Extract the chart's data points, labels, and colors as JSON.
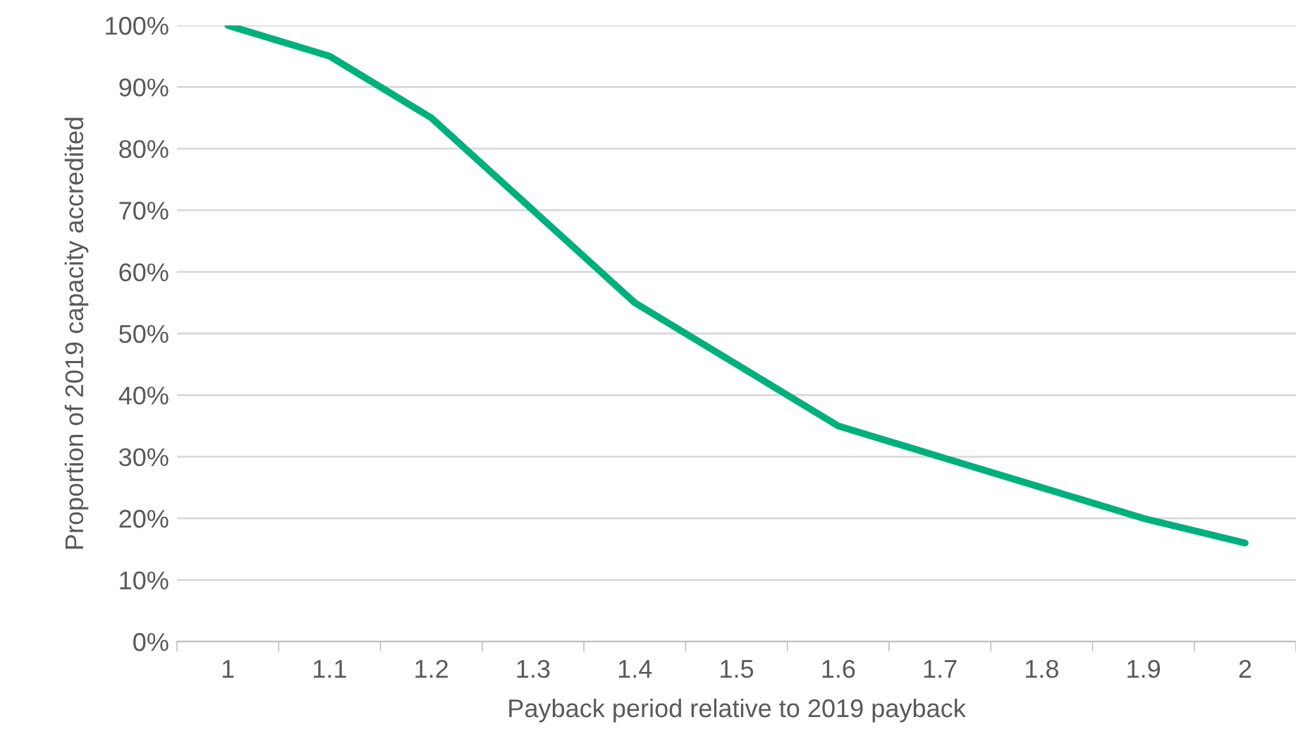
{
  "chart_data": {
    "type": "line",
    "xlabel": "Payback period relative to 2019 payback",
    "ylabel": "Proportion of 2019 capacity accredited",
    "categories": [
      "1",
      "1.1",
      "1.2",
      "1.3",
      "1.4",
      "1.5",
      "1.6",
      "1.7",
      "1.8",
      "1.9",
      "2"
    ],
    "series": [
      {
        "color": "#00b07c",
        "values": [
          100,
          95,
          85,
          70,
          55,
          45,
          35,
          30,
          25,
          20,
          16
        ]
      }
    ],
    "ylim": [
      0,
      100
    ],
    "yticks": [
      {
        "value": 0,
        "label": "0%"
      },
      {
        "value": 10,
        "label": "10%"
      },
      {
        "value": 20,
        "label": "20%"
      },
      {
        "value": 30,
        "label": "30%"
      },
      {
        "value": 40,
        "label": "40%"
      },
      {
        "value": 50,
        "label": "50%"
      },
      {
        "value": 60,
        "label": "60%"
      },
      {
        "value": 70,
        "label": "70%"
      },
      {
        "value": 80,
        "label": "80%"
      },
      {
        "value": 90,
        "label": "90%"
      },
      {
        "value": 100,
        "label": "100%"
      }
    ],
    "grid": "y",
    "marker": "none",
    "line_style": "solid"
  }
}
